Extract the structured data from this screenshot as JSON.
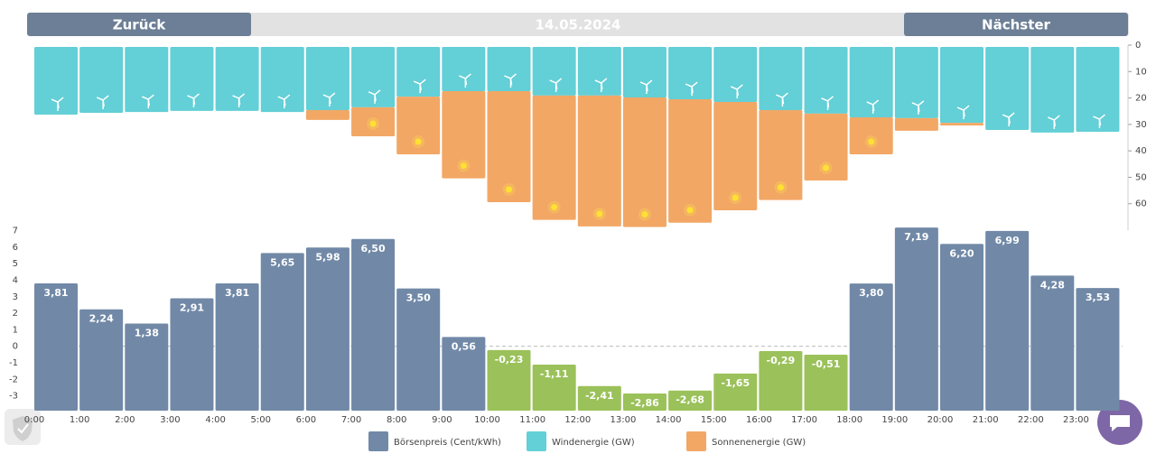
{
  "header": {
    "prev": "Zurück",
    "date": "14.05.2024",
    "next": "Nächster"
  },
  "chart_data": [
    {
      "type": "stacked_bar",
      "inverted": true,
      "ylim": [
        0,
        70
      ],
      "yticks": [
        0,
        10,
        20,
        30,
        40,
        50,
        60
      ],
      "series": [
        {
          "name": "Windenergie (GW)",
          "color": "#63cfd6",
          "values": [
            26.3,
            25.6,
            25.3,
            24.9,
            24.9,
            25.3,
            24.6,
            23.5,
            19.5,
            17.4,
            17.4,
            19.1,
            19.1,
            19.8,
            20.5,
            21.5,
            24.6,
            25.9,
            27.3,
            27.6,
            29.4,
            32.1,
            33.1,
            32.8
          ]
        },
        {
          "name": "Sonnenenergie (GW)",
          "color": "#f2a765",
          "values": [
            0,
            0,
            0,
            0,
            0,
            0,
            3.7,
            11,
            21.8,
            33,
            42,
            47,
            49.5,
            49,
            46.7,
            41,
            34,
            25.3,
            14,
            4.8,
            1,
            0,
            0,
            0
          ]
        }
      ]
    },
    {
      "type": "bar",
      "ylim": [
        -3.9,
        7.2
      ],
      "yticks": [
        7,
        6,
        5,
        4,
        3,
        2,
        1,
        0,
        -1,
        -2,
        -3
      ],
      "categories": [
        "0:00",
        "1:00",
        "2:00",
        "3:00",
        "4:00",
        "5:00",
        "6:00",
        "7:00",
        "8:00",
        "9:00",
        "10:00",
        "11:00",
        "12:00",
        "13:00",
        "14:00",
        "15:00",
        "16:00",
        "17:00",
        "18:00",
        "19:00",
        "20:00",
        "21:00",
        "22:00",
        "23:00"
      ],
      "series": [
        {
          "name": "Börsenpreis (Cent/kWh)",
          "color": "#7189a7",
          "negative_color": "#9bc15a",
          "values": [
            3.81,
            2.24,
            1.38,
            2.91,
            3.81,
            5.65,
            5.98,
            6.5,
            3.5,
            0.56,
            -0.23,
            -1.11,
            -2.41,
            -2.86,
            -2.68,
            -1.65,
            -0.29,
            -0.51,
            3.8,
            7.19,
            6.2,
            6.99,
            4.28,
            3.53
          ],
          "value_labels": [
            "3,81",
            "2,24",
            "1,38",
            "2,91",
            "3,81",
            "5,65",
            "5,98",
            "6,50",
            "3,50",
            "0,56",
            "-0,23",
            "-1,11",
            "-2,41",
            "-2,86",
            "-2,68",
            "-1,65",
            "-0,29",
            "-0,51",
            "3,80",
            "7,19",
            "6,20",
            "6,99",
            "4,28",
            "3,53"
          ]
        }
      ]
    }
  ]
}
